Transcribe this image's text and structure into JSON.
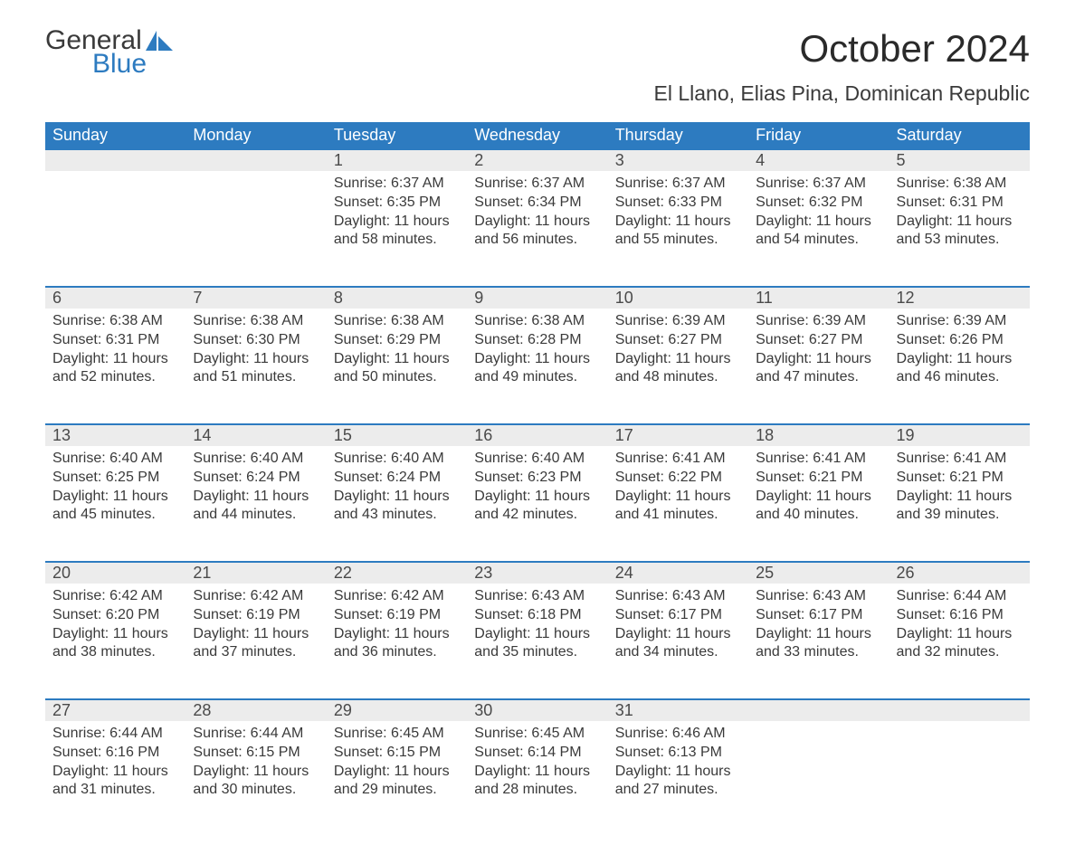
{
  "brand": {
    "word1": "General",
    "word2": "Blue",
    "icon_color": "#2d7bc0"
  },
  "title": "October 2024",
  "subtitle": "El Llano, Elias Pina, Dominican Republic",
  "colors": {
    "header_bg": "#2d7bc0",
    "header_text": "#ffffff",
    "daynum_bg": "#ececec",
    "daynum_border": "#2d7bc0",
    "body_text": "#3a3a3a",
    "page_bg": "#ffffff"
  },
  "fonts": {
    "title_size_pt": 32,
    "subtitle_size_pt": 17,
    "header_size_pt": 14,
    "cell_size_pt": 12
  },
  "layout": {
    "columns": 7,
    "first_day_column_index": 2,
    "days_in_month": 31
  },
  "weekdays": [
    "Sunday",
    "Monday",
    "Tuesday",
    "Wednesday",
    "Thursday",
    "Friday",
    "Saturday"
  ],
  "days": [
    {
      "n": 1,
      "sunrise": "6:37 AM",
      "sunset": "6:35 PM",
      "daylight": "11 hours and 58 minutes."
    },
    {
      "n": 2,
      "sunrise": "6:37 AM",
      "sunset": "6:34 PM",
      "daylight": "11 hours and 56 minutes."
    },
    {
      "n": 3,
      "sunrise": "6:37 AM",
      "sunset": "6:33 PM",
      "daylight": "11 hours and 55 minutes."
    },
    {
      "n": 4,
      "sunrise": "6:37 AM",
      "sunset": "6:32 PM",
      "daylight": "11 hours and 54 minutes."
    },
    {
      "n": 5,
      "sunrise": "6:38 AM",
      "sunset": "6:31 PM",
      "daylight": "11 hours and 53 minutes."
    },
    {
      "n": 6,
      "sunrise": "6:38 AM",
      "sunset": "6:31 PM",
      "daylight": "11 hours and 52 minutes."
    },
    {
      "n": 7,
      "sunrise": "6:38 AM",
      "sunset": "6:30 PM",
      "daylight": "11 hours and 51 minutes."
    },
    {
      "n": 8,
      "sunrise": "6:38 AM",
      "sunset": "6:29 PM",
      "daylight": "11 hours and 50 minutes."
    },
    {
      "n": 9,
      "sunrise": "6:38 AM",
      "sunset": "6:28 PM",
      "daylight": "11 hours and 49 minutes."
    },
    {
      "n": 10,
      "sunrise": "6:39 AM",
      "sunset": "6:27 PM",
      "daylight": "11 hours and 48 minutes."
    },
    {
      "n": 11,
      "sunrise": "6:39 AM",
      "sunset": "6:27 PM",
      "daylight": "11 hours and 47 minutes."
    },
    {
      "n": 12,
      "sunrise": "6:39 AM",
      "sunset": "6:26 PM",
      "daylight": "11 hours and 46 minutes."
    },
    {
      "n": 13,
      "sunrise": "6:40 AM",
      "sunset": "6:25 PM",
      "daylight": "11 hours and 45 minutes."
    },
    {
      "n": 14,
      "sunrise": "6:40 AM",
      "sunset": "6:24 PM",
      "daylight": "11 hours and 44 minutes."
    },
    {
      "n": 15,
      "sunrise": "6:40 AM",
      "sunset": "6:24 PM",
      "daylight": "11 hours and 43 minutes."
    },
    {
      "n": 16,
      "sunrise": "6:40 AM",
      "sunset": "6:23 PM",
      "daylight": "11 hours and 42 minutes."
    },
    {
      "n": 17,
      "sunrise": "6:41 AM",
      "sunset": "6:22 PM",
      "daylight": "11 hours and 41 minutes."
    },
    {
      "n": 18,
      "sunrise": "6:41 AM",
      "sunset": "6:21 PM",
      "daylight": "11 hours and 40 minutes."
    },
    {
      "n": 19,
      "sunrise": "6:41 AM",
      "sunset": "6:21 PM",
      "daylight": "11 hours and 39 minutes."
    },
    {
      "n": 20,
      "sunrise": "6:42 AM",
      "sunset": "6:20 PM",
      "daylight": "11 hours and 38 minutes."
    },
    {
      "n": 21,
      "sunrise": "6:42 AM",
      "sunset": "6:19 PM",
      "daylight": "11 hours and 37 minutes."
    },
    {
      "n": 22,
      "sunrise": "6:42 AM",
      "sunset": "6:19 PM",
      "daylight": "11 hours and 36 minutes."
    },
    {
      "n": 23,
      "sunrise": "6:43 AM",
      "sunset": "6:18 PM",
      "daylight": "11 hours and 35 minutes."
    },
    {
      "n": 24,
      "sunrise": "6:43 AM",
      "sunset": "6:17 PM",
      "daylight": "11 hours and 34 minutes."
    },
    {
      "n": 25,
      "sunrise": "6:43 AM",
      "sunset": "6:17 PM",
      "daylight": "11 hours and 33 minutes."
    },
    {
      "n": 26,
      "sunrise": "6:44 AM",
      "sunset": "6:16 PM",
      "daylight": "11 hours and 32 minutes."
    },
    {
      "n": 27,
      "sunrise": "6:44 AM",
      "sunset": "6:16 PM",
      "daylight": "11 hours and 31 minutes."
    },
    {
      "n": 28,
      "sunrise": "6:44 AM",
      "sunset": "6:15 PM",
      "daylight": "11 hours and 30 minutes."
    },
    {
      "n": 29,
      "sunrise": "6:45 AM",
      "sunset": "6:15 PM",
      "daylight": "11 hours and 29 minutes."
    },
    {
      "n": 30,
      "sunrise": "6:45 AM",
      "sunset": "6:14 PM",
      "daylight": "11 hours and 28 minutes."
    },
    {
      "n": 31,
      "sunrise": "6:46 AM",
      "sunset": "6:13 PM",
      "daylight": "11 hours and 27 minutes."
    }
  ],
  "labels": {
    "sunrise": "Sunrise:",
    "sunset": "Sunset:",
    "daylight": "Daylight:"
  }
}
